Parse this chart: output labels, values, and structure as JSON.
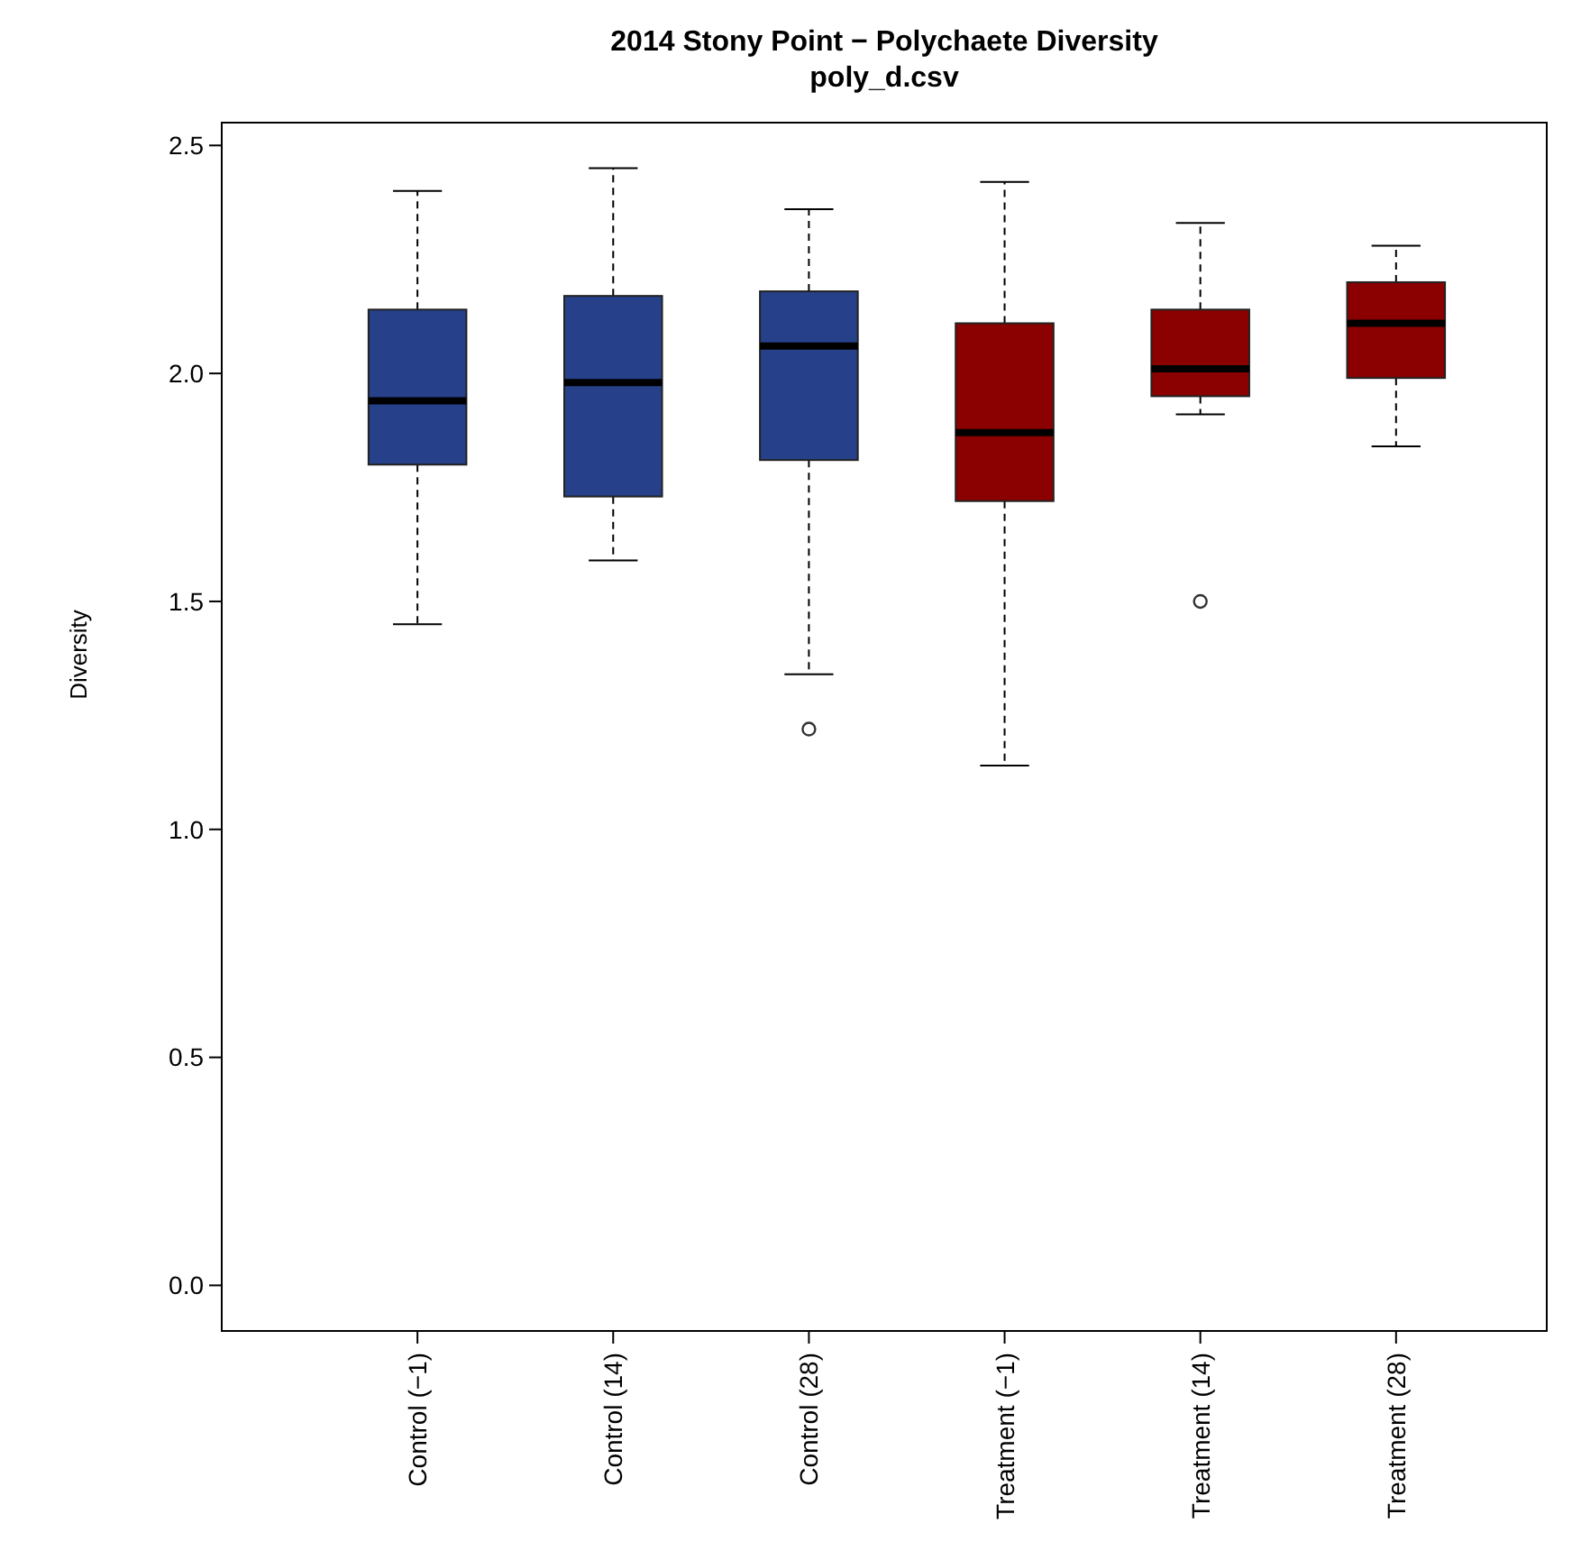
{
  "chart_data": {
    "type": "box",
    "title": "2014 Stony Point − Polychaete Diversity",
    "subtitle": "poly_d.csv",
    "ylabel": "Diversity",
    "categories": [
      "Control (−1)",
      "Control (14)",
      "Control (28)",
      "Treatment (−1)",
      "Treatment (14)",
      "Treatment (28)"
    ],
    "colors": [
      "#26418a",
      "#26418a",
      "#26418a",
      "#8b0000",
      "#8b0000",
      "#8b0000"
    ],
    "boxes": [
      {
        "low": 1.45,
        "q1": 1.8,
        "median": 1.94,
        "q3": 2.14,
        "high": 2.4
      },
      {
        "low": 1.59,
        "q1": 1.73,
        "median": 1.98,
        "q3": 2.17,
        "high": 2.45
      },
      {
        "low": 1.34,
        "q1": 1.81,
        "median": 2.06,
        "q3": 2.18,
        "high": 2.36,
        "outliers": [
          1.22
        ]
      },
      {
        "low": 1.14,
        "q1": 1.72,
        "median": 1.87,
        "q3": 2.11,
        "high": 2.42
      },
      {
        "low": 1.91,
        "q1": 1.95,
        "median": 2.01,
        "q3": 2.14,
        "high": 2.33,
        "outliers": [
          1.5
        ]
      },
      {
        "low": 1.84,
        "q1": 1.99,
        "median": 2.11,
        "q3": 2.2,
        "high": 2.28
      }
    ],
    "ylim": [
      -0.1,
      2.55
    ],
    "yticks": [
      {
        "value": 0,
        "label": "0.0"
      },
      0.5,
      {
        "value": 1,
        "label": "1.0"
      },
      1.5,
      {
        "value": 2,
        "label": "2.0"
      },
      2.5
    ],
    "grid": false
  }
}
